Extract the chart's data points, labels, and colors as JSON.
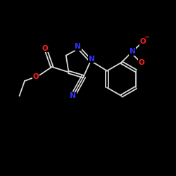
{
  "background_color": "#000000",
  "bond_color": "#d8d8d8",
  "N_color": "#3333ff",
  "O_color": "#ff2020",
  "figsize": [
    2.5,
    2.5
  ],
  "dpi": 100,
  "xlim": [
    0,
    10
  ],
  "ylim": [
    0,
    10
  ]
}
